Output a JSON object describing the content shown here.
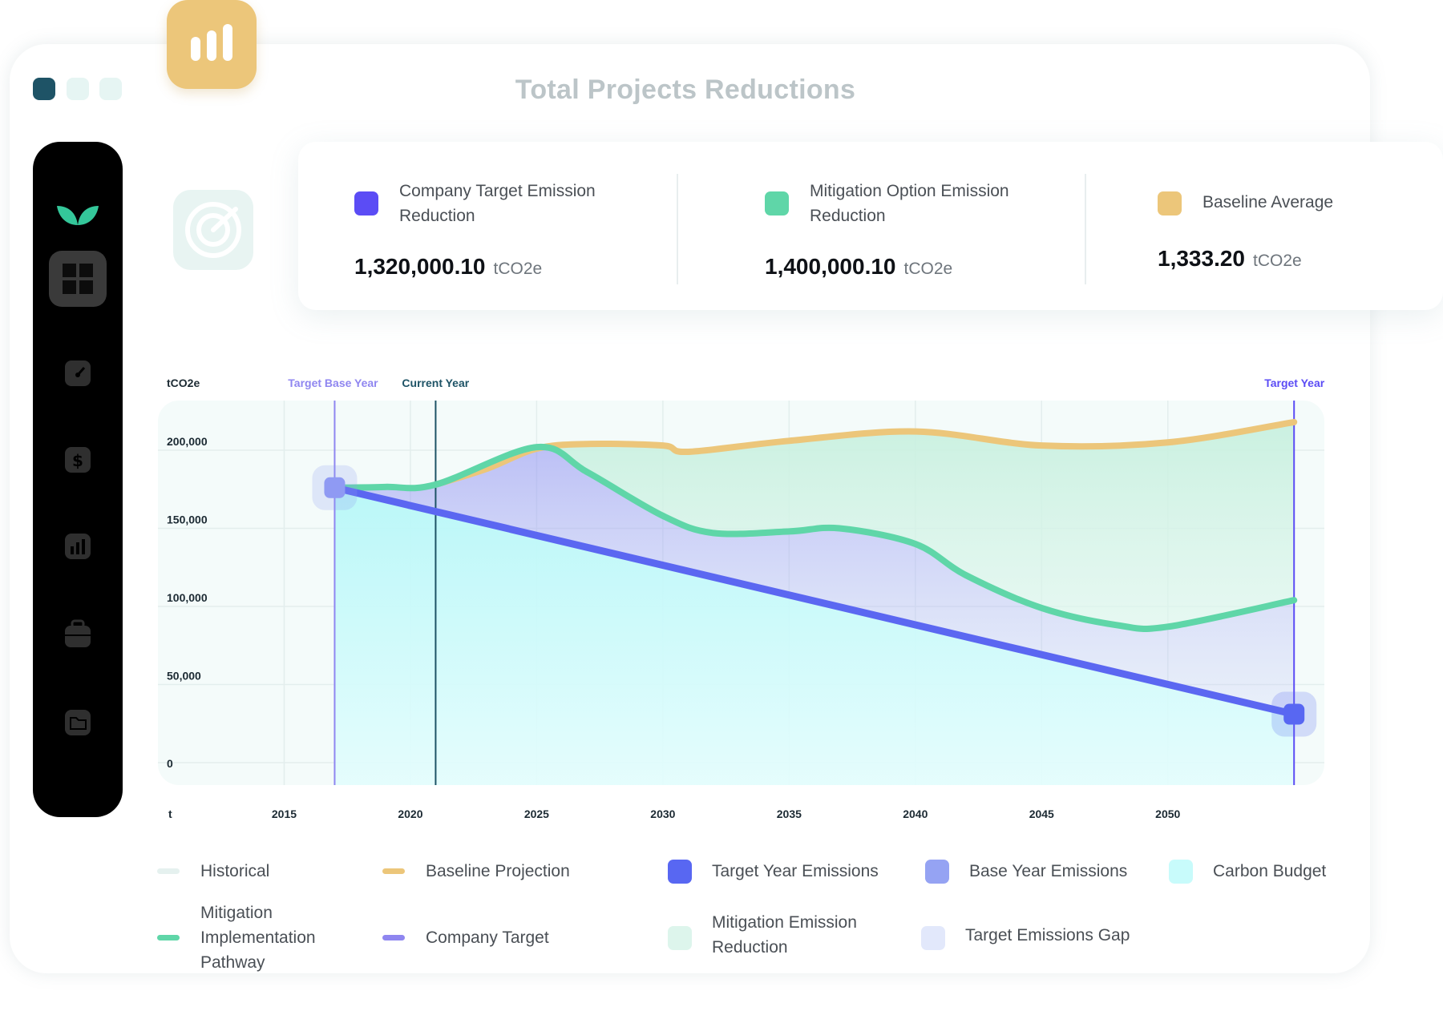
{
  "window": {
    "title": "Total Projects Reductions"
  },
  "sidebar": {
    "items": [
      {
        "icon": "leaf-logo-icon"
      },
      {
        "icon": "dashboard-grid-icon",
        "active": true
      },
      {
        "icon": "gauge-icon"
      },
      {
        "icon": "dollar-icon"
      },
      {
        "icon": "bar-chart-icon"
      },
      {
        "icon": "briefcase-icon"
      },
      {
        "icon": "folder-icon"
      }
    ]
  },
  "stats": [
    {
      "label": "Company Target Emission Reduction",
      "value": "1,320,000.10",
      "unit": "tCO2e",
      "color": "#5b4cf5"
    },
    {
      "label": "Mitigation Option Emission Reduction",
      "value": "1,400,000.10",
      "unit": "tCO2e",
      "color": "#5fd6a8"
    },
    {
      "label": "Baseline Average",
      "value": "1,333.20",
      "unit": "tCO2e",
      "color": "#ecc67a"
    }
  ],
  "chart_data": {
    "type": "area",
    "y_unit_label": "tCO2e",
    "x_unit_label": "t",
    "x_ticks": [
      "2015",
      "2020",
      "2025",
      "2030",
      "2035",
      "2040",
      "2045",
      "2050"
    ],
    "y_ticks": [
      "200,000",
      "150,000",
      "100,000",
      "50,000",
      "0"
    ],
    "ylim": [
      0,
      240000
    ],
    "grid": true,
    "markers": [
      {
        "label": "Target Base Year",
        "x": 2017,
        "color": "#8f86f0"
      },
      {
        "label": "Current Year",
        "x": 2021,
        "color": "#1e5366"
      },
      {
        "label": "Target Year",
        "x": 2055,
        "color": "#5b4cf5"
      }
    ],
    "series": [
      {
        "name": "Mitigation Implementation Pathway",
        "color": "#5fd6a8",
        "x": [
          2017,
          2019,
          2021,
          2025,
          2027,
          2030,
          2032,
          2035,
          2037,
          2040,
          2042,
          2045,
          2048,
          2050,
          2055
        ],
        "values": [
          176000,
          176500,
          178000,
          202000,
          186000,
          158000,
          147000,
          148000,
          150000,
          140000,
          120000,
          99000,
          88000,
          87000,
          104000
        ]
      },
      {
        "name": "Baseline Projection",
        "color": "#ecc67a",
        "x": [
          2021,
          2023,
          2025,
          2027,
          2030,
          2031,
          2035,
          2040,
          2045,
          2050,
          2055
        ],
        "values": [
          178000,
          188000,
          201000,
          204000,
          203000,
          199000,
          206000,
          212000,
          203000,
          205000,
          218000
        ]
      },
      {
        "name": "Company Target",
        "color": "#5b4cf5",
        "x": [
          2017,
          2055
        ],
        "values": [
          176000,
          31000
        ]
      }
    ],
    "points": [
      {
        "name": "Base Year Emissions",
        "x": 2017,
        "y": 176000,
        "color": "#8f9af3"
      },
      {
        "name": "Target Year Emissions",
        "x": 2055,
        "y": 31000,
        "color": "#5867f2"
      }
    ],
    "legend": [
      {
        "label": "Historical",
        "color": "#e5f1ef",
        "shape": "line"
      },
      {
        "label": "Baseline Projection",
        "color": "#ecc67a",
        "shape": "line"
      },
      {
        "label": "Target Year Emissions",
        "color": "#5867f2",
        "shape": "square"
      },
      {
        "label": "Base Year Emissions",
        "color": "#95a3f3",
        "shape": "square"
      },
      {
        "label": "Carbon Budget",
        "color": "#c8fbfb",
        "shape": "square"
      },
      {
        "label": "Mitigation Implementation Pathway",
        "color": "#5fd6a8",
        "shape": "line"
      },
      {
        "label": "Company Target",
        "color": "#8f86f0",
        "shape": "line"
      },
      {
        "label": "Mitigation Emission Reduction",
        "color": "#ddf5ec",
        "shape": "square"
      },
      {
        "label": "Target Emissions Gap",
        "color": "#e2e8fb",
        "shape": "square"
      }
    ]
  }
}
